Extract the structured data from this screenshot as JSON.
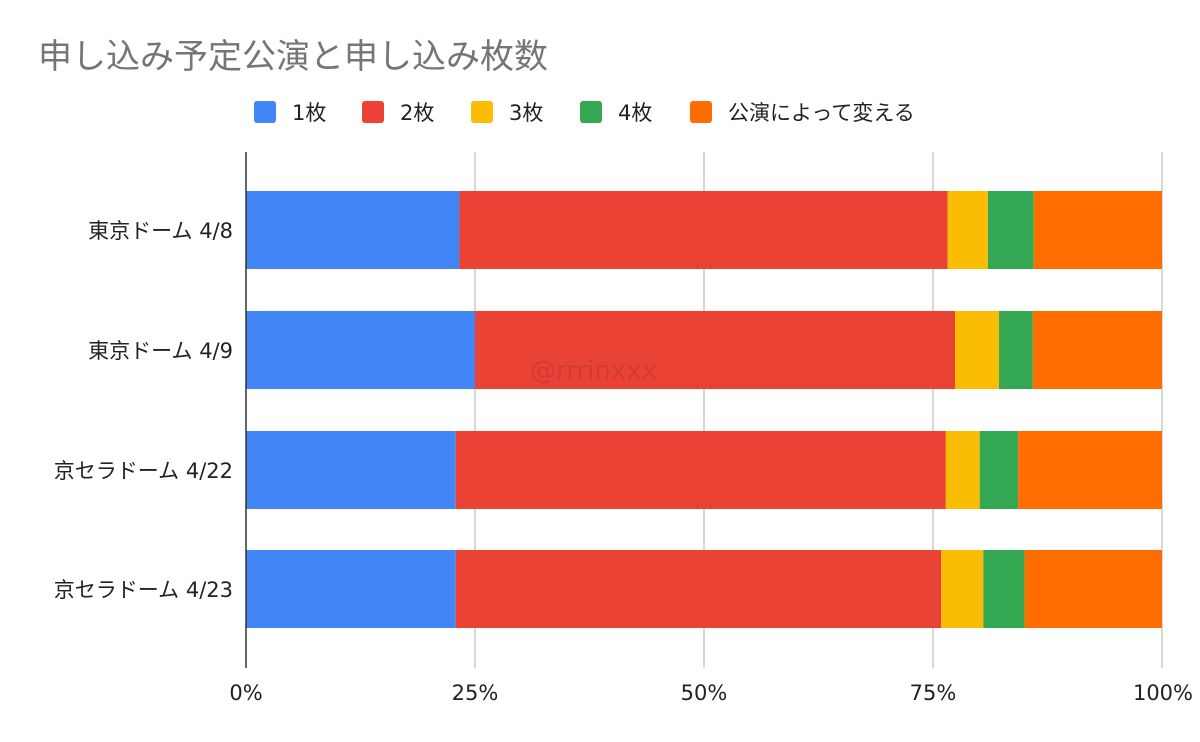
{
  "chart_data": {
    "type": "bar",
    "orientation": "horizontal",
    "stacked": "percent",
    "title": "申し込み予定公演と申し込み枚数",
    "categories": [
      "東京ドーム 4/8",
      "東京ドーム 4/9",
      "京セラドーム 4/22",
      "京セラドーム 4/23"
    ],
    "series": [
      {
        "name": "1枚",
        "color": "#4285F4",
        "values": [
          23.3,
          25.0,
          22.9,
          22.9
        ]
      },
      {
        "name": "2枚",
        "color": "#EA4335",
        "values": [
          53.3,
          52.4,
          53.5,
          53.0
        ]
      },
      {
        "name": "3枚",
        "color": "#FBBC04",
        "values": [
          4.4,
          4.8,
          3.7,
          4.6
        ]
      },
      {
        "name": "4枚",
        "color": "#34A853",
        "values": [
          5.0,
          3.7,
          4.2,
          4.5
        ]
      },
      {
        "name": "公演によって変える",
        "color": "#FF6D01",
        "values": [
          14.0,
          14.1,
          15.7,
          15.0
        ]
      }
    ],
    "x_ticks": [
      "0%",
      "25%",
      "50%",
      "75%",
      "100%"
    ],
    "xlim": [
      0,
      100
    ],
    "grid": true,
    "legend_position": "top",
    "watermark": "@rrrinxxx"
  }
}
